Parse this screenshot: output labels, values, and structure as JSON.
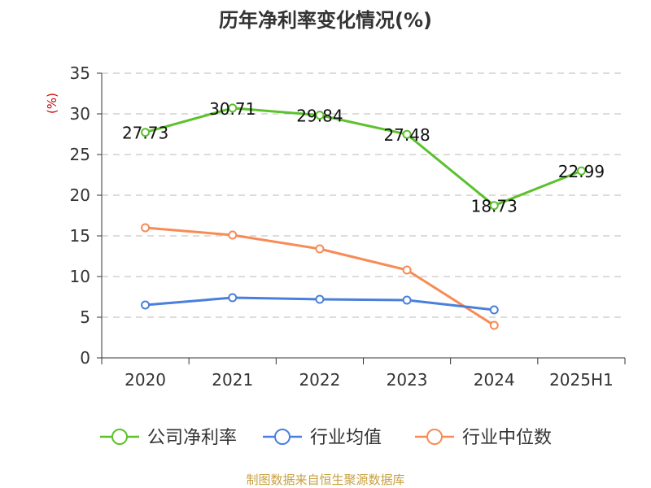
{
  "chart_data": {
    "type": "line",
    "title": "历年净利率变化情况(%)",
    "ylabel": "(%)",
    "xlabel": "",
    "categories": [
      "2020",
      "2021",
      "2022",
      "2023",
      "2024",
      "2025H1"
    ],
    "ylim": [
      0,
      35
    ],
    "yticks": [
      0,
      5,
      10,
      15,
      20,
      25,
      30,
      35
    ],
    "grid": true,
    "legend_position": "bottom",
    "series": [
      {
        "name": "公司净利率",
        "color": "#5cc12c",
        "values": [
          27.73,
          30.71,
          29.84,
          27.48,
          18.73,
          22.99
        ],
        "labels": [
          "27.73",
          "30.71",
          "29.84",
          "27.48",
          "18.73",
          "22.99"
        ]
      },
      {
        "name": "行业均值",
        "color": "#4a7fdb",
        "values": [
          6.5,
          7.4,
          7.2,
          7.1,
          5.9,
          null
        ]
      },
      {
        "name": "行业中位数",
        "color": "#f78b55",
        "values": [
          16.0,
          15.1,
          13.4,
          10.8,
          4.0,
          null
        ]
      }
    ],
    "source": "制图数据来自恒生聚源数据库"
  }
}
